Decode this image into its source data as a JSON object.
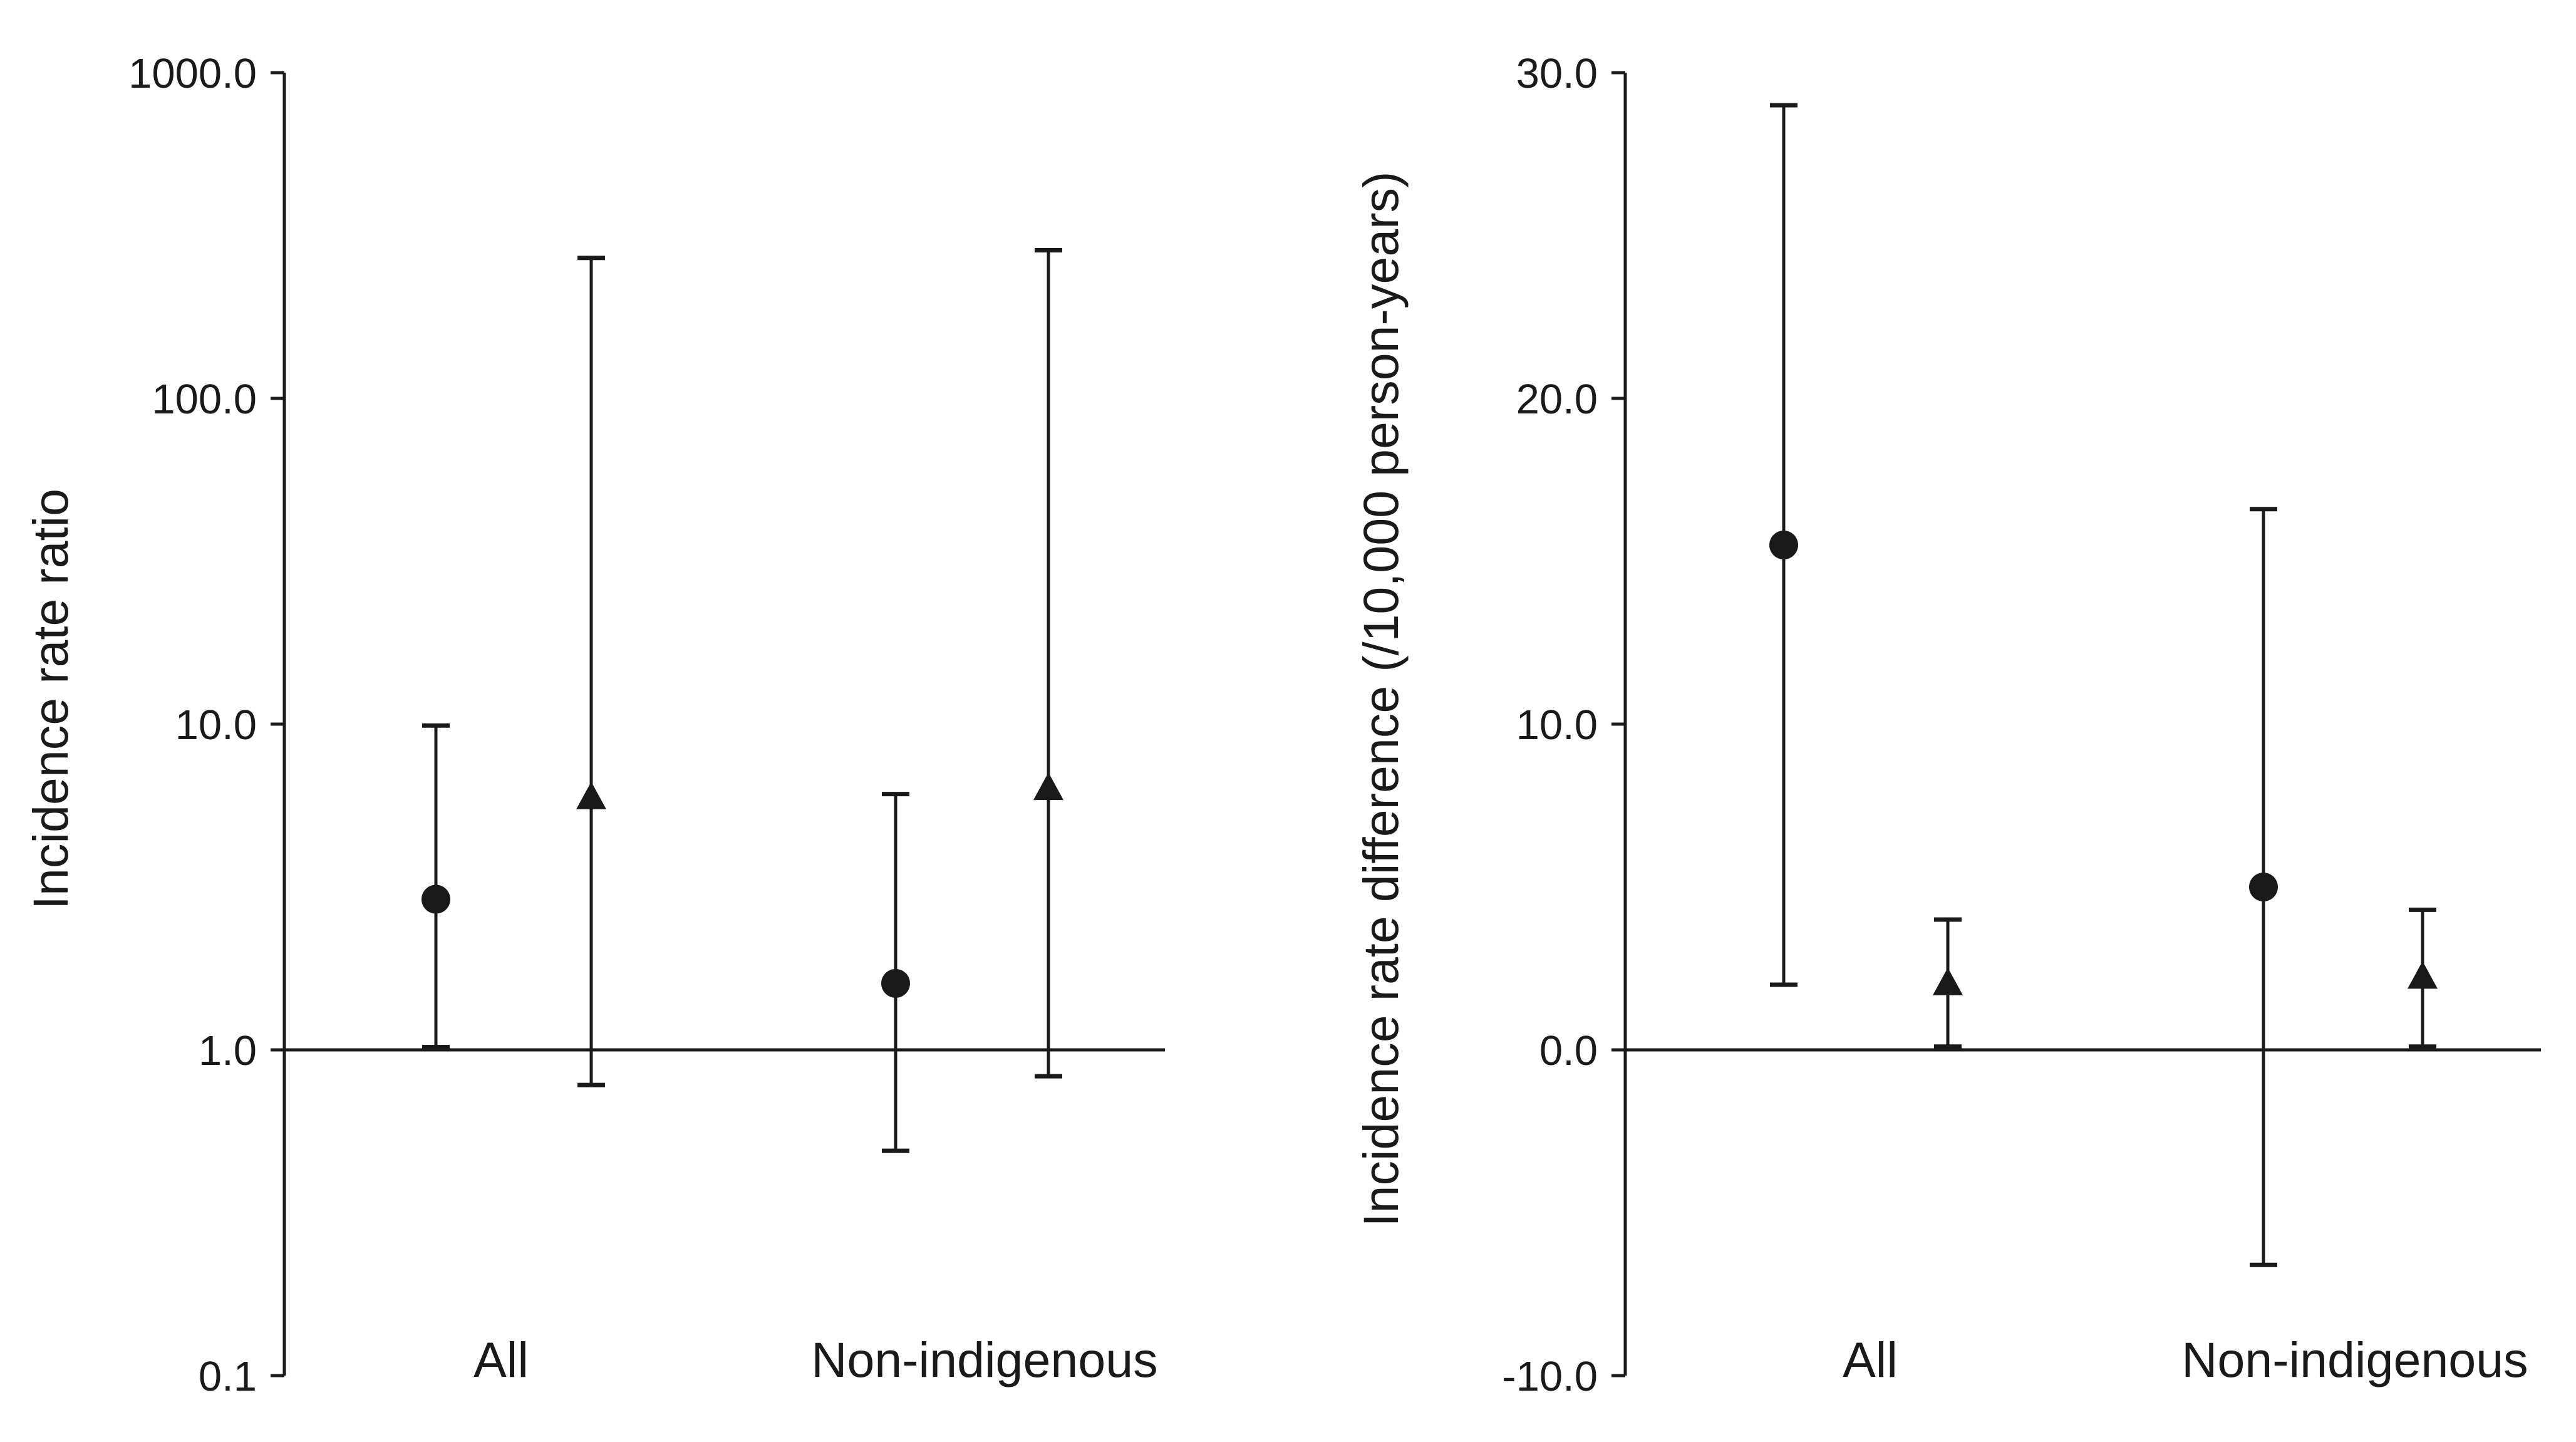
{
  "chart_data": [
    {
      "type": "scatter",
      "ylabel": "Incidence rate ratio",
      "yscale": "log",
      "ylim": [
        0.1,
        1000
      ],
      "yticks": [
        "0.1",
        "1.0",
        "10.0",
        "100.0",
        "1000.0"
      ],
      "categories": [
        "All",
        "Non-indigenous"
      ],
      "reference_line": 1.0,
      "series": [
        {
          "marker": "circle",
          "values": [
            2.9,
            1.6
          ],
          "lower": [
            1.02,
            0.49
          ],
          "upper": [
            9.9,
            6.1
          ]
        },
        {
          "marker": "triangle",
          "values": [
            5.9,
            6.3
          ],
          "lower": [
            0.78,
            0.83
          ],
          "upper": [
            270,
            285
          ]
        }
      ]
    },
    {
      "type": "scatter",
      "ylabel": "Incidence rate difference (/10,000 person-years)",
      "yscale": "linear",
      "ylim": [
        -10,
        30
      ],
      "yticks": [
        "-10.0",
        "0.0",
        "10.0",
        "20.0",
        "30.0"
      ],
      "categories": [
        "All",
        "Non-indigenous"
      ],
      "reference_line": 0.0,
      "series": [
        {
          "marker": "circle",
          "values": [
            15.5,
            5.0
          ],
          "lower": [
            2.0,
            -6.6
          ],
          "upper": [
            29.0,
            16.6
          ]
        },
        {
          "marker": "triangle",
          "values": [
            2.0,
            2.2
          ],
          "lower": [
            0.1,
            0.1
          ],
          "upper": [
            4.0,
            4.3
          ]
        }
      ]
    }
  ]
}
